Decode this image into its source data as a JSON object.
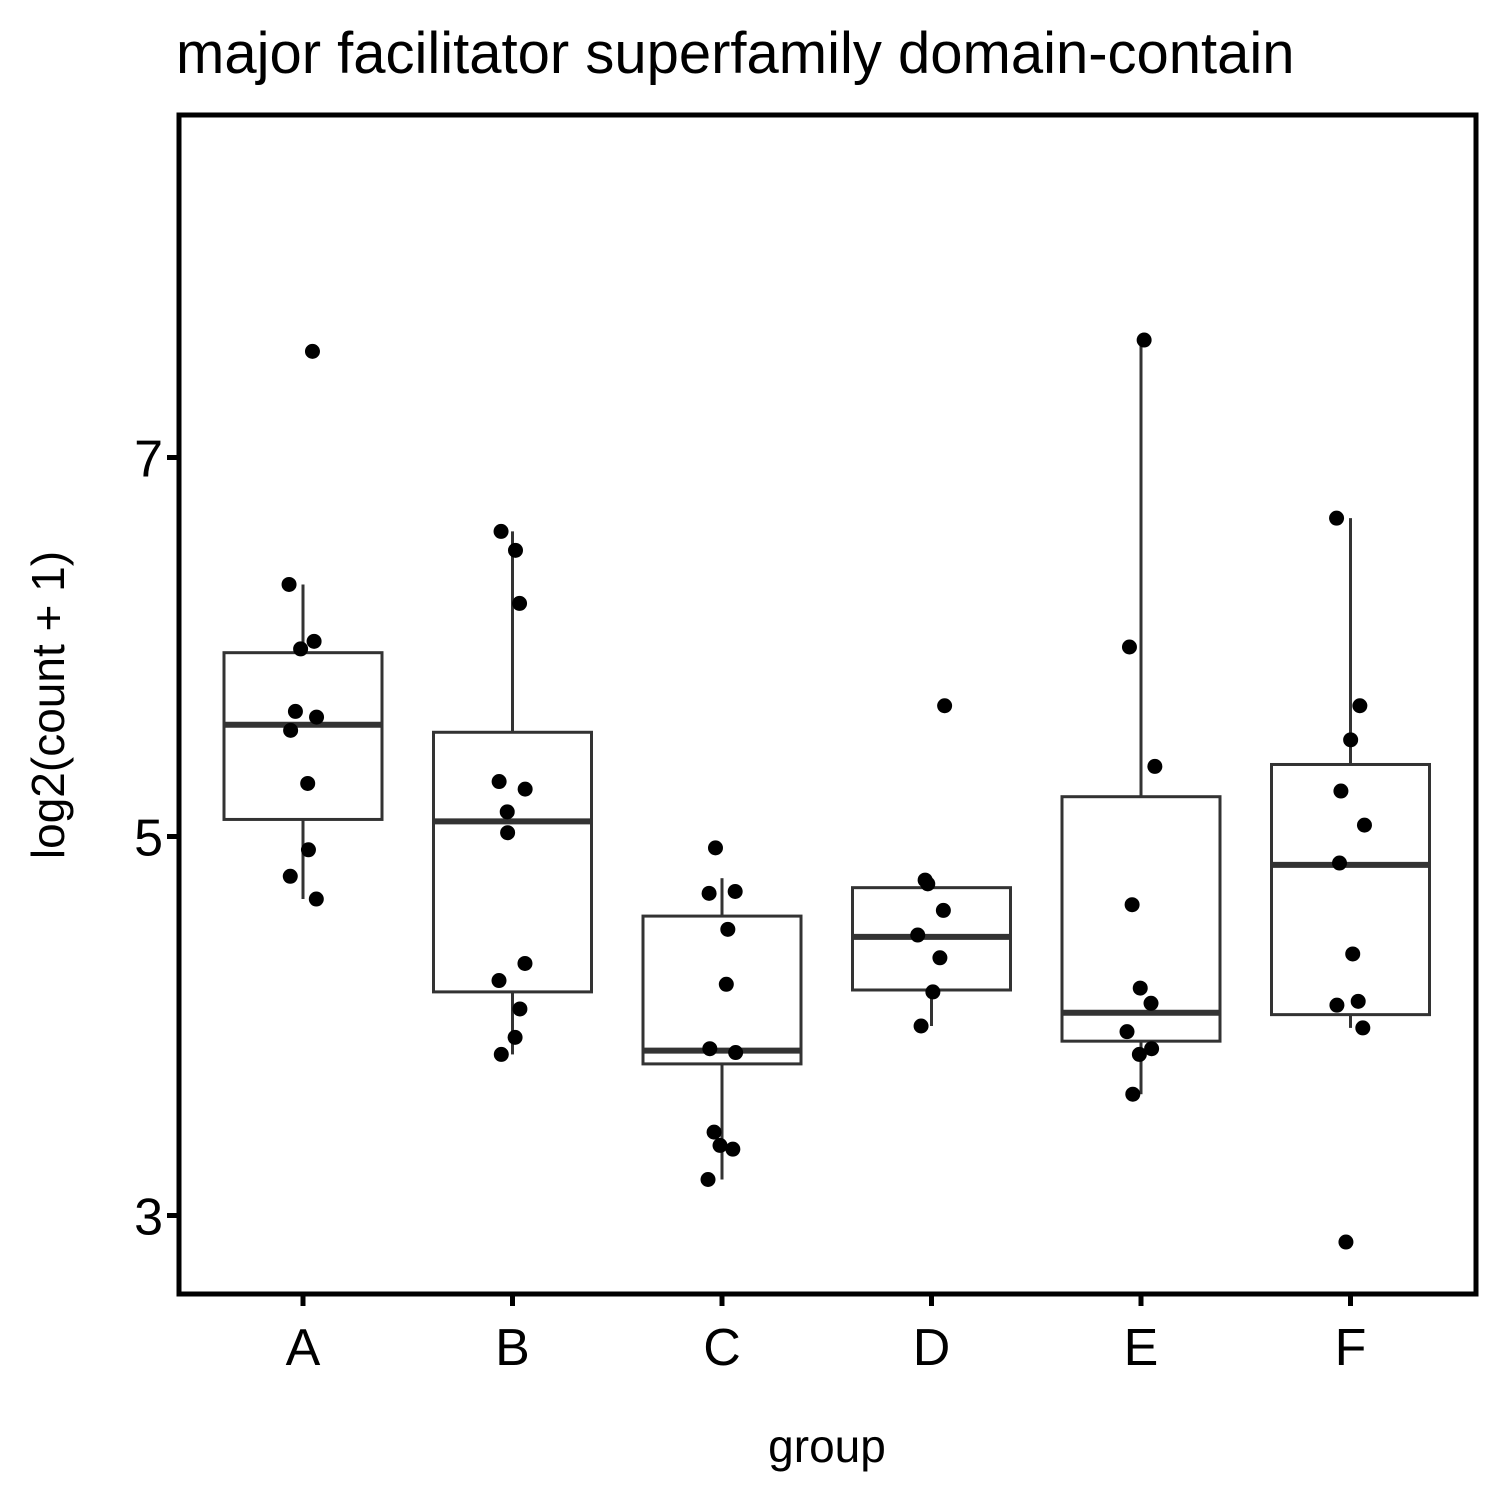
{
  "chart_data": {
    "type": "box",
    "title": "major facilitator superfamily domain-contain",
    "xlabel": "group",
    "ylabel": "log2(count + 1)",
    "categories": [
      "A",
      "B",
      "C",
      "D",
      "E",
      "F"
    ],
    "ylim": [
      2.6,
      8.8
    ],
    "yticks": [
      3,
      5,
      7
    ],
    "grid": false,
    "legend": "none",
    "colors": {
      "box_stroke": "#333333",
      "point_fill": "#000000",
      "panel_border": "#000000"
    },
    "boxes": [
      {
        "group": "A",
        "lower_whisker": 4.67,
        "q1": 5.09,
        "median": 5.59,
        "q3": 5.97,
        "upper_whisker": 6.33
      },
      {
        "group": "B",
        "lower_whisker": 3.85,
        "q1": 4.18,
        "median": 5.08,
        "q3": 5.55,
        "upper_whisker": 6.61
      },
      {
        "group": "C",
        "lower_whisker": 3.19,
        "q1": 3.8,
        "median": 3.87,
        "q3": 4.58,
        "upper_whisker": 4.78
      },
      {
        "group": "D",
        "lower_whisker": 4.0,
        "q1": 4.19,
        "median": 4.47,
        "q3": 4.73,
        "upper_whisker": 4.73
      },
      {
        "group": "E",
        "lower_whisker": 3.64,
        "q1": 3.92,
        "median": 4.07,
        "q3": 5.21,
        "upper_whisker": 7.62
      },
      {
        "group": "F",
        "lower_whisker": 3.99,
        "q1": 4.06,
        "median": 4.85,
        "q3": 5.38,
        "upper_whisker": 6.68
      }
    ],
    "points": [
      {
        "group": "A",
        "y": 7.56
      },
      {
        "group": "A",
        "y": 6.33
      },
      {
        "group": "A",
        "y": 6.03
      },
      {
        "group": "A",
        "y": 5.99
      },
      {
        "group": "A",
        "y": 5.66
      },
      {
        "group": "A",
        "y": 5.63
      },
      {
        "group": "A",
        "y": 5.56
      },
      {
        "group": "A",
        "y": 5.28
      },
      {
        "group": "A",
        "y": 4.93
      },
      {
        "group": "A",
        "y": 4.79
      },
      {
        "group": "A",
        "y": 4.67
      },
      {
        "group": "B",
        "y": 6.61
      },
      {
        "group": "B",
        "y": 6.51
      },
      {
        "group": "B",
        "y": 6.23
      },
      {
        "group": "B",
        "y": 5.29
      },
      {
        "group": "B",
        "y": 5.25
      },
      {
        "group": "B",
        "y": 5.13
      },
      {
        "group": "B",
        "y": 5.02
      },
      {
        "group": "B",
        "y": 4.33
      },
      {
        "group": "B",
        "y": 4.24
      },
      {
        "group": "B",
        "y": 4.09
      },
      {
        "group": "B",
        "y": 3.94
      },
      {
        "group": "B",
        "y": 3.85
      },
      {
        "group": "C",
        "y": 4.94
      },
      {
        "group": "C",
        "y": 4.71
      },
      {
        "group": "C",
        "y": 4.7
      },
      {
        "group": "C",
        "y": 4.51
      },
      {
        "group": "C",
        "y": 4.22
      },
      {
        "group": "C",
        "y": 3.88
      },
      {
        "group": "C",
        "y": 3.86
      },
      {
        "group": "C",
        "y": 3.44
      },
      {
        "group": "C",
        "y": 3.37
      },
      {
        "group": "C",
        "y": 3.35
      },
      {
        "group": "C",
        "y": 3.19
      },
      {
        "group": "D",
        "y": 5.69
      },
      {
        "group": "D",
        "y": 4.77
      },
      {
        "group": "D",
        "y": 4.75
      },
      {
        "group": "D",
        "y": 4.61
      },
      {
        "group": "D",
        "y": 4.48
      },
      {
        "group": "D",
        "y": 4.36
      },
      {
        "group": "D",
        "y": 4.18
      },
      {
        "group": "D",
        "y": 4.0
      },
      {
        "group": "E",
        "y": 7.62
      },
      {
        "group": "E",
        "y": 6.0
      },
      {
        "group": "E",
        "y": 5.37
      },
      {
        "group": "E",
        "y": 4.64
      },
      {
        "group": "E",
        "y": 4.2
      },
      {
        "group": "E",
        "y": 4.12
      },
      {
        "group": "E",
        "y": 3.97
      },
      {
        "group": "E",
        "y": 3.88
      },
      {
        "group": "E",
        "y": 3.85
      },
      {
        "group": "E",
        "y": 3.64
      },
      {
        "group": "F",
        "y": 6.68
      },
      {
        "group": "F",
        "y": 5.69
      },
      {
        "group": "F",
        "y": 5.51
      },
      {
        "group": "F",
        "y": 5.24
      },
      {
        "group": "F",
        "y": 5.06
      },
      {
        "group": "F",
        "y": 4.86
      },
      {
        "group": "F",
        "y": 4.38
      },
      {
        "group": "F",
        "y": 4.13
      },
      {
        "group": "F",
        "y": 4.11
      },
      {
        "group": "F",
        "y": 3.99
      },
      {
        "group": "F",
        "y": 2.86
      }
    ]
  }
}
